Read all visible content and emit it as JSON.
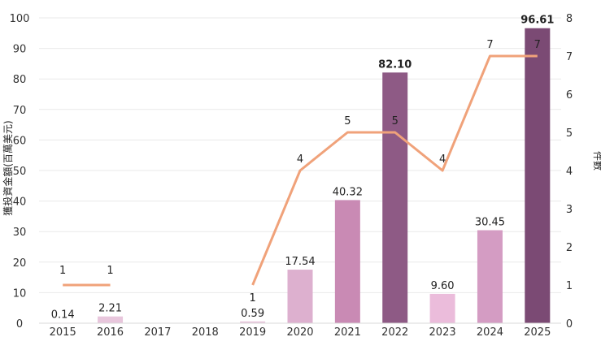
{
  "chart_data": {
    "type": "bar",
    "categories": [
      "2015",
      "2016",
      "2017",
      "2018",
      "2019",
      "2020",
      "2021",
      "2022",
      "2023",
      "2024",
      "2025"
    ],
    "series": [
      {
        "type": "bar",
        "values": [
          0.14,
          2.21,
          null,
          null,
          0.59,
          17.54,
          40.32,
          82.1,
          9.6,
          30.45,
          96.61
        ],
        "labels": [
          "0.14",
          "2.21",
          "",
          "",
          "0.59",
          "17.54",
          "40.32",
          "82.10",
          "9.60",
          "30.45",
          "96.61"
        ],
        "colors": [
          "#e8c6dc",
          "#e8c6dc",
          "#e8c6dc",
          "#e8c6dc",
          "#e8c6dc",
          "#ddb0cf",
          "#c98ab4",
          "#8e5a85",
          "#ebbcdb",
          "#d49cc3",
          "#7b4a74"
        ],
        "axis": "left"
      },
      {
        "type": "line",
        "values": [
          1,
          1,
          null,
          null,
          1,
          4,
          5,
          5,
          4,
          7,
          7
        ],
        "labels": [
          "1",
          "1",
          "",
          "",
          "1",
          "4",
          "5",
          "5",
          "4",
          "7",
          "7"
        ],
        "color": "#f0a27a",
        "axis": "right"
      }
    ],
    "ylabel": "獲投資金額(百萬美元)",
    "y2label": "件數",
    "ylim": [
      0,
      100
    ],
    "yticks": [
      "0",
      "10",
      "20",
      "30",
      "40",
      "50",
      "60",
      "70",
      "80",
      "90",
      "100"
    ],
    "y2lim": [
      0,
      8
    ],
    "y2ticks": [
      "0",
      "1",
      "2",
      "3",
      "4",
      "5",
      "6",
      "7",
      "8"
    ],
    "grid": true
  }
}
